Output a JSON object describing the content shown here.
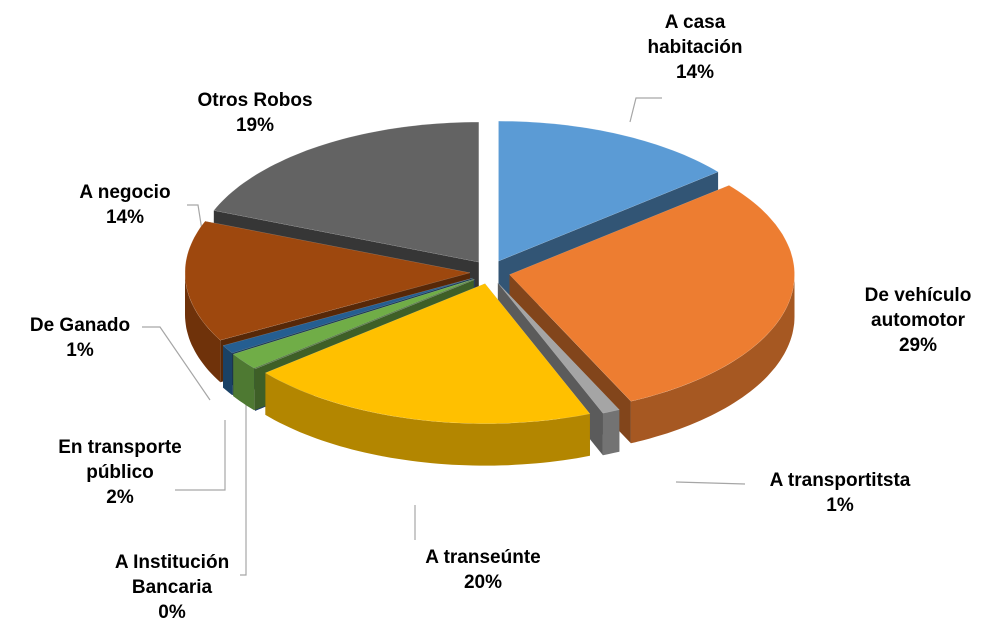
{
  "chart_data": {
    "type": "pie3d",
    "categories": [
      "A casa habitación",
      "De vehículo automotor",
      "A transportitsta",
      "A transeúnte",
      "A Institución Bancaria",
      "En transporte público",
      "De Ganado",
      "A negocio",
      "Otros Robos"
    ],
    "values": [
      14,
      29,
      1,
      20,
      0,
      2,
      1,
      14,
      19
    ],
    "value_labels": [
      "14%",
      "29%",
      "1%",
      "20%",
      "0%",
      "2%",
      "1%",
      "14%",
      "19%"
    ],
    "colors": [
      "#5b9bd5",
      "#ed7d31",
      "#a5a5a5",
      "#ffc000",
      "#4472c4",
      "#70ad47",
      "#255e91",
      "#9e480e",
      "#636363"
    ]
  }
}
